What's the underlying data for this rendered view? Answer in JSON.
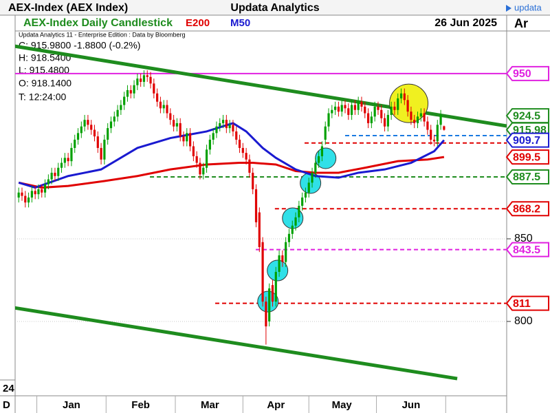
{
  "header": {
    "title": "AEX-Index (AEX Index)",
    "center": "Updata Analytics",
    "logo": "updata"
  },
  "chart_data": {
    "type": "candlestick",
    "title": "AEX-Index Daily Candlestick",
    "date": "26 Jun 2025",
    "right_header": "Ar",
    "credit": "Updata Analytics 11 - Enterprise Edition : Data by Bloomberg",
    "info_lines": [
      "C: 915.9800  -1.8800 (-0.2%)",
      "H: 918.5400",
      "L: 915.4800",
      "O: 918.1400",
      "T: 12:24:00"
    ],
    "left_labels": [
      "24",
      "D"
    ],
    "up_color": "#00a000",
    "down_color": "#e00000",
    "xlim": [
      -1.5,
      148
    ],
    "ylim": [
      755,
      975.8
    ],
    "xticks": [
      {
        "value": 16,
        "label": "Jan"
      },
      {
        "value": 37,
        "label": "Feb"
      },
      {
        "value": 58,
        "label": "Mar"
      },
      {
        "value": 78,
        "label": "Apr"
      },
      {
        "value": 98,
        "label": "May"
      },
      {
        "value": 119,
        "label": "Jun"
      }
    ],
    "yticks": [
      800,
      850
    ],
    "grid": true,
    "open": [
      875,
      878,
      876,
      872,
      875,
      879,
      877,
      880,
      878,
      883,
      886,
      890,
      888,
      893,
      896,
      899,
      897,
      905,
      910,
      914,
      918,
      922,
      919,
      916,
      912,
      905,
      898,
      910,
      917,
      921,
      924,
      928,
      931,
      936,
      940,
      938,
      943,
      947,
      945,
      949,
      948,
      944,
      938,
      933,
      929,
      931,
      926,
      922,
      918,
      920,
      912,
      909,
      914,
      906,
      900,
      896,
      889,
      893,
      904,
      910,
      914,
      918,
      920,
      922,
      917,
      919,
      915,
      910,
      905,
      902,
      898,
      890,
      880,
      866,
      848,
      812,
      800,
      822,
      812,
      830,
      840,
      836,
      848,
      853,
      858,
      863,
      870,
      875,
      878,
      884,
      890,
      896,
      900,
      910,
      918,
      926,
      928,
      930,
      927,
      931,
      929,
      925,
      931,
      928,
      933,
      930,
      926,
      920,
      924,
      930,
      928,
      923,
      918,
      925,
      930,
      928,
      935,
      938,
      934,
      927,
      922,
      920,
      924,
      926,
      921,
      916,
      910,
      909,
      919,
      918.14
    ],
    "high": [
      881,
      881,
      879,
      878,
      882,
      882,
      883,
      883,
      886,
      889,
      893,
      893,
      896,
      899,
      902,
      902,
      908,
      913,
      917,
      921,
      925,
      925,
      922,
      919,
      915,
      908,
      913,
      920,
      924,
      927,
      931,
      934,
      939,
      943,
      943,
      946,
      950,
      950,
      952,
      952,
      951,
      947,
      941,
      936,
      934,
      934,
      929,
      925,
      923,
      923,
      915,
      917,
      917,
      909,
      903,
      899,
      896,
      907,
      913,
      917,
      921,
      923,
      925,
      925,
      922,
      922,
      918,
      913,
      908,
      905,
      901,
      893,
      883,
      869,
      851,
      815,
      823,
      825,
      833,
      843,
      843,
      851,
      856,
      861,
      866,
      873,
      878,
      881,
      887,
      893,
      899,
      903,
      909,
      921,
      929,
      931,
      933,
      933,
      934,
      934,
      932,
      934,
      934,
      936,
      936,
      933,
      929,
      927,
      933,
      933,
      931,
      926,
      928,
      933,
      933,
      938,
      941,
      941,
      937,
      930,
      925,
      927,
      929,
      929,
      924,
      919,
      913,
      922,
      928,
      918.54
    ],
    "low": [
      872,
      873,
      869,
      869,
      872,
      874,
      874,
      875,
      875,
      880,
      883,
      885,
      885,
      890,
      893,
      894,
      894,
      902,
      907,
      911,
      915,
      916,
      913,
      909,
      902,
      895,
      895,
      907,
      914,
      918,
      921,
      925,
      928,
      933,
      935,
      935,
      940,
      942,
      942,
      945,
      941,
      935,
      930,
      926,
      926,
      923,
      919,
      915,
      915,
      909,
      906,
      906,
      903,
      897,
      893,
      886,
      886,
      890,
      901,
      907,
      911,
      915,
      917,
      914,
      914,
      912,
      907,
      902,
      899,
      895,
      887,
      877,
      857,
      842,
      809,
      786,
      797,
      809,
      809,
      827,
      833,
      833,
      845,
      850,
      855,
      860,
      867,
      872,
      875,
      881,
      887,
      893,
      897,
      907,
      915,
      923,
      925,
      924,
      924,
      926,
      922,
      922,
      925,
      925,
      927,
      923,
      917,
      917,
      921,
      925,
      920,
      915,
      915,
      922,
      925,
      925,
      932,
      931,
      924,
      919,
      917,
      917,
      921,
      918,
      913,
      907,
      906,
      906,
      916,
      915.48
    ],
    "close": [
      878,
      876,
      872,
      875,
      879,
      877,
      880,
      878,
      883,
      886,
      890,
      888,
      893,
      896,
      899,
      897,
      905,
      910,
      914,
      918,
      922,
      919,
      916,
      912,
      905,
      898,
      910,
      917,
      921,
      924,
      928,
      931,
      936,
      940,
      938,
      943,
      947,
      945,
      949,
      948,
      944,
      938,
      933,
      929,
      931,
      926,
      922,
      918,
      920,
      912,
      909,
      914,
      906,
      900,
      896,
      889,
      893,
      904,
      910,
      914,
      918,
      920,
      922,
      917,
      919,
      915,
      910,
      905,
      902,
      898,
      890,
      880,
      860,
      845,
      812,
      797,
      820,
      812,
      830,
      840,
      836,
      848,
      853,
      858,
      863,
      870,
      875,
      878,
      884,
      890,
      896,
      900,
      906,
      918,
      926,
      928,
      930,
      927,
      931,
      929,
      925,
      931,
      928,
      933,
      930,
      926,
      920,
      924,
      930,
      928,
      923,
      918,
      925,
      930,
      928,
      935,
      938,
      934,
      927,
      922,
      920,
      924,
      926,
      921,
      916,
      910,
      909,
      919,
      925,
      915.98
    ],
    "series": [
      {
        "name": "E200",
        "color": "#e00000",
        "x": [
          0,
          7,
          15,
          26,
          36,
          46,
          57,
          67,
          71,
          78,
          84,
          90,
          97,
          105,
          115,
          124,
          129
        ],
        "values": [
          884,
          881,
          882,
          885,
          888,
          892,
          895,
          896,
          896,
          895,
          891,
          890,
          890,
          893,
          897,
          898,
          899.5
        ]
      },
      {
        "name": "M50",
        "color": "#1a1ad0",
        "x": [
          0,
          5,
          15,
          25,
          36,
          46,
          57,
          65,
          69,
          74,
          78,
          84,
          90,
          97,
          103,
          111,
          119,
          126,
          129
        ],
        "values": [
          884,
          881,
          888,
          892,
          905,
          911,
          915,
          920,
          915,
          905,
          899,
          892,
          888,
          887,
          890,
          892,
          896,
          903,
          909.7
        ]
      }
    ],
    "trendlines": [
      {
        "color": "#1e8c1e",
        "x": [
          -1.5,
          148
        ],
        "values": [
          966.7,
          918.3
        ]
      },
      {
        "color": "#1e8c1e",
        "x": [
          -1.5,
          133
        ],
        "values": [
          808.3,
          765.4
        ]
      }
    ],
    "levels": [
      {
        "value": 950,
        "color": "#e020e0",
        "style": "solid",
        "from": -1.5
      },
      {
        "value": 912.5,
        "color": "#1a7ae0",
        "style": "dashed",
        "from": 99
      },
      {
        "value": 908,
        "color": "#e00000",
        "style": "dashed",
        "from": 86.7
      },
      {
        "value": 887.5,
        "color": "#1e8c1e",
        "style": "dashed",
        "from": 39.8
      },
      {
        "value": 868.2,
        "color": "#e00000",
        "style": "dashed",
        "from": 77.7
      },
      {
        "value": 843.5,
        "color": "#e020e0",
        "style": "dashed",
        "from": 71.9
      },
      {
        "value": 811,
        "color": "#e00000",
        "style": "dashed",
        "from": 59.6
      }
    ],
    "price_markers": [
      {
        "value": 950,
        "color": "#e020e0"
      },
      {
        "value": 924.5,
        "color": "#1e8c1e"
      },
      {
        "value": 915.98,
        "color": "#1e8c1e"
      },
      {
        "value": 909.7,
        "color": "#1a1ad0"
      },
      {
        "value": 899.5,
        "color": "#e00000"
      },
      {
        "value": 887.5,
        "color": "#1e8c1e"
      },
      {
        "value": 868.2,
        "color": "#e00000"
      },
      {
        "value": 843.5,
        "color": "#e020e0"
      },
      {
        "value": 811,
        "color": "#e00000"
      }
    ],
    "highlights": [
      {
        "x": 75.6,
        "value": 812,
        "color": "#30e0e8"
      },
      {
        "x": 78.5,
        "value": 830.8,
        "color": "#30e0e8"
      },
      {
        "x": 83.1,
        "value": 862.5,
        "color": "#30e0e8"
      },
      {
        "x": 88.5,
        "value": 883.75,
        "color": "#30e0e8"
      },
      {
        "x": 93.1,
        "value": 898.75,
        "color": "#30e0e8"
      },
      {
        "x": 118.3,
        "value": 932,
        "color": "#f0f020"
      }
    ]
  }
}
